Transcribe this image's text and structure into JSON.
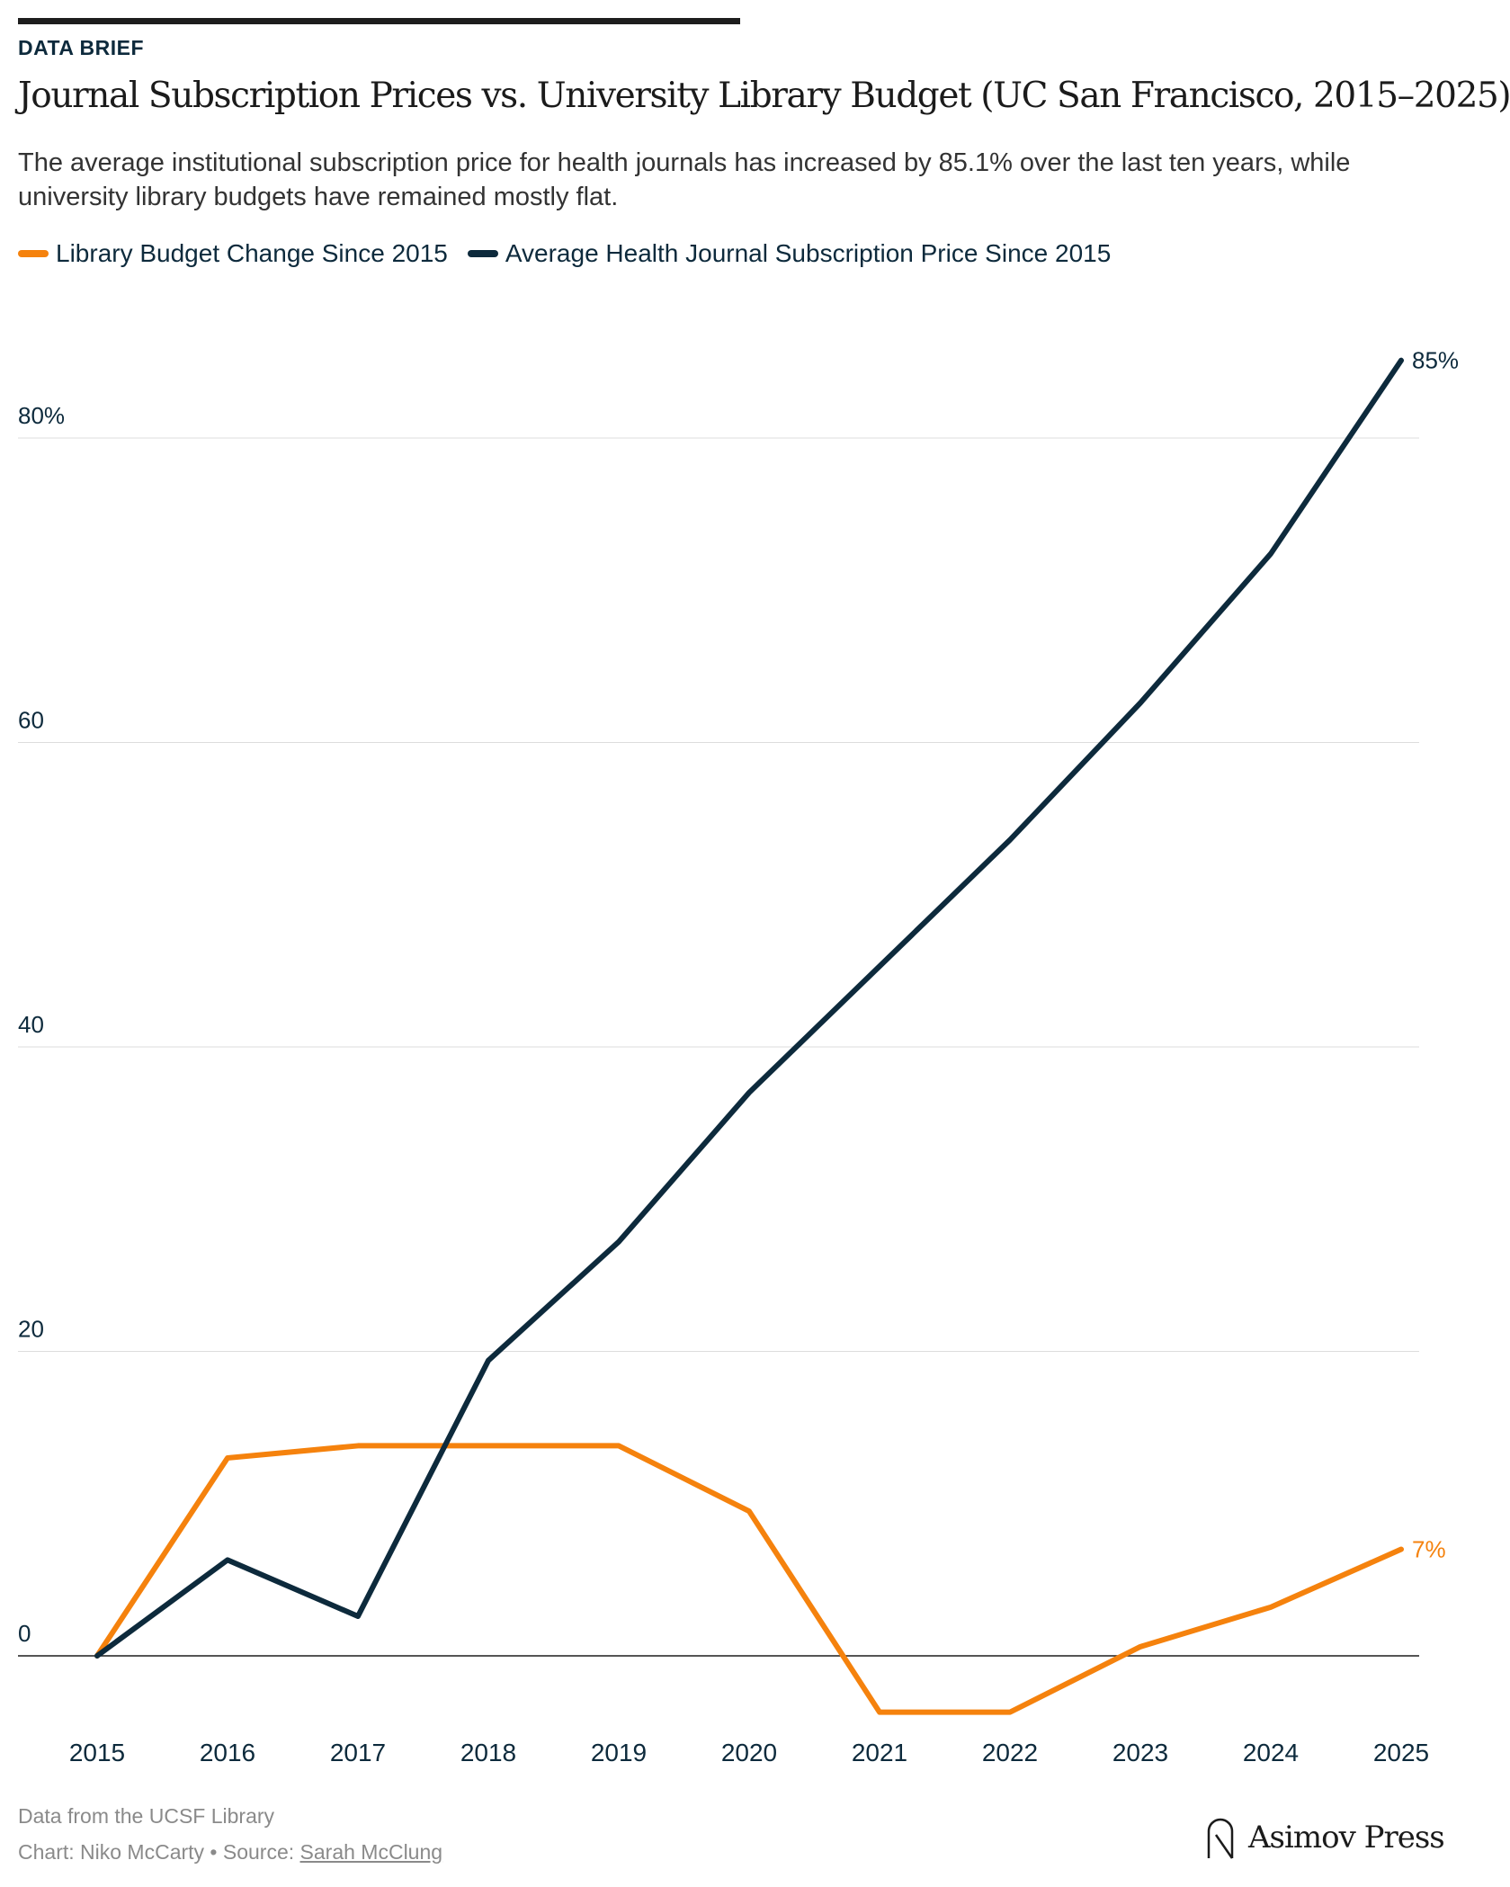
{
  "header": {
    "kicker": "DATA BRIEF",
    "title": "Journal Subscription Prices vs. University Library Budget (UC San Francisco, 2015–2025)",
    "subtitle": "The average institutional subscription price for health journals has increased by 85.1% over the last ten years, while university library budgets have remained mostly flat."
  },
  "colors": {
    "library_budget": "#f5820d",
    "journal_price": "#0d2a3c",
    "gridline": "#dddddd",
    "zero_line": "#1d1d1d"
  },
  "chart_data": {
    "type": "line",
    "x": [
      2015,
      2016,
      2017,
      2018,
      2019,
      2020,
      2021,
      2022,
      2023,
      2024,
      2025
    ],
    "series": [
      {
        "name": "Library Budget Change Since 2015",
        "color": "#f5820d",
        "values": [
          0,
          13,
          13.8,
          13.8,
          13.8,
          9.5,
          -3.7,
          -3.7,
          0.6,
          3.2,
          7
        ],
        "end_label": "7%"
      },
      {
        "name": "Average Health Journal Subscription Price Since 2015",
        "color": "#0d2a3c",
        "values": [
          0,
          6.3,
          2.6,
          19.4,
          27.2,
          37,
          45.3,
          53.6,
          62.6,
          72.4,
          85.1
        ],
        "end_label": "85%"
      }
    ],
    "yticks": [
      {
        "value": 0,
        "label": "0"
      },
      {
        "value": 20,
        "label": "20"
      },
      {
        "value": 40,
        "label": "40"
      },
      {
        "value": 60,
        "label": "60"
      },
      {
        "value": 80,
        "label": "80%"
      }
    ],
    "ylim": [
      -5,
      90
    ],
    "grid": true,
    "legend_position": "top-left"
  },
  "footer": {
    "data_note": "Data from the UCSF Library",
    "credit_prefix": "Chart: Niko McCarty • Source: ",
    "source_name": "Sarah McClung",
    "brand": "Asimov Press"
  }
}
